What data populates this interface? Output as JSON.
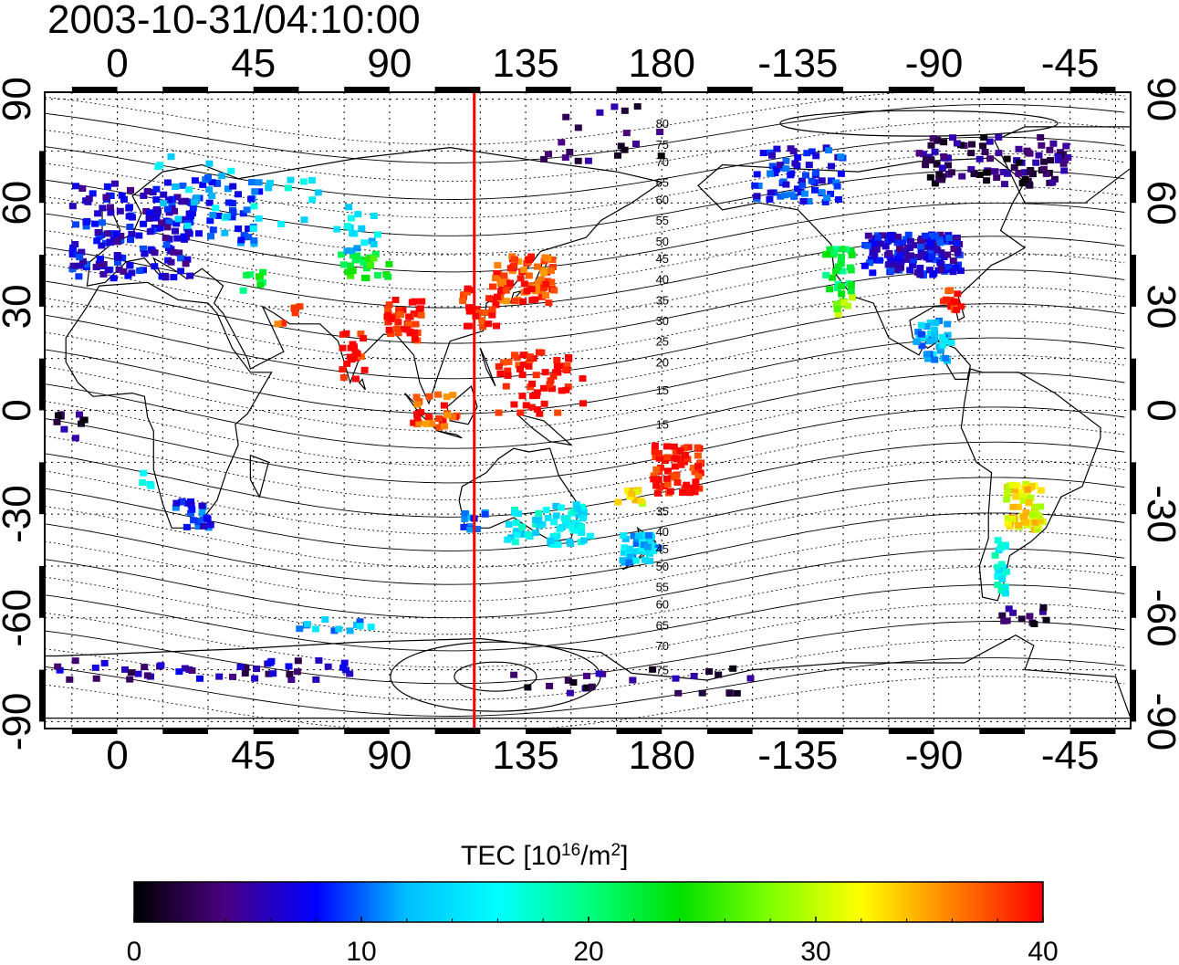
{
  "title": "2003-10-31/04:10:00",
  "map": {
    "lon_ticks": [
      "0",
      "45",
      "90",
      "135",
      "180",
      "-135",
      "-90",
      "-45"
    ],
    "lon_values": [
      0,
      45,
      90,
      135,
      180,
      225,
      270,
      315
    ],
    "lat_ticks": [
      "90",
      "60",
      "30",
      "0",
      "-30",
      "-60",
      "-90"
    ],
    "lat_values": [
      90,
      60,
      30,
      0,
      -30,
      -60,
      -90
    ],
    "lon_range": [
      -24,
      335
    ],
    "lat_range": [
      -92,
      92
    ],
    "meridian_lon": 118,
    "meridian_color": "#ff0000",
    "grid": true,
    "contour_labels": [
      {
        "text": "80",
        "lon": 178,
        "lat": 83
      },
      {
        "text": "75",
        "lon": 178,
        "lat": 77
      },
      {
        "text": "70",
        "lon": 178,
        "lat": 72
      },
      {
        "text": "65",
        "lon": 178,
        "lat": 66
      },
      {
        "text": "60",
        "lon": 178,
        "lat": 61
      },
      {
        "text": "55",
        "lon": 178,
        "lat": 55
      },
      {
        "text": "50",
        "lon": 178,
        "lat": 49
      },
      {
        "text": "45",
        "lon": 178,
        "lat": 44
      },
      {
        "text": "40",
        "lon": 178,
        "lat": 38
      },
      {
        "text": "35",
        "lon": 178,
        "lat": 32
      },
      {
        "text": "30",
        "lon": 178,
        "lat": 26
      },
      {
        "text": "25",
        "lon": 178,
        "lat": 20
      },
      {
        "text": "20",
        "lon": 178,
        "lat": 14
      },
      {
        "text": "15",
        "lon": 178,
        "lat": 6
      },
      {
        "text": "15",
        "lon": 178,
        "lat": -4
      },
      {
        "text": "35",
        "lon": 178,
        "lat": -29
      },
      {
        "text": "40",
        "lon": 178,
        "lat": -35
      },
      {
        "text": "45",
        "lon": 178,
        "lat": -40
      },
      {
        "text": "50",
        "lon": 178,
        "lat": -45
      },
      {
        "text": "55",
        "lon": 178,
        "lat": -51
      },
      {
        "text": "60",
        "lon": 178,
        "lat": -56
      },
      {
        "text": "65",
        "lon": 178,
        "lat": -62
      },
      {
        "text": "70",
        "lon": 178,
        "lat": -68
      },
      {
        "text": "75",
        "lon": 178,
        "lat": -75
      }
    ],
    "tec_clusters": [
      {
        "lon": 5,
        "lat": 52,
        "dlon": 20,
        "dlat": 14,
        "tec": 7,
        "n": 170
      },
      {
        "lon": 35,
        "lat": 58,
        "dlon": 12,
        "dlat": 10,
        "tec": 9,
        "n": 50
      },
      {
        "lon": 45,
        "lat": 38,
        "dlon": 4,
        "dlat": 4,
        "tec": 22,
        "n": 8
      },
      {
        "lon": 57,
        "lat": 28,
        "dlon": 4,
        "dlat": 3,
        "tec": 36,
        "n": 6
      },
      {
        "lon": 82,
        "lat": 42,
        "dlon": 9,
        "dlat": 4,
        "tec": 24,
        "n": 25
      },
      {
        "lon": 82,
        "lat": 52,
        "dlon": 6,
        "dlat": 6,
        "tec": 14,
        "n": 14
      },
      {
        "lon": 95,
        "lat": 26,
        "dlon": 6,
        "dlat": 6,
        "tec": 40,
        "n": 40
      },
      {
        "lon": 78,
        "lat": 16,
        "dlon": 4,
        "dlat": 7,
        "tec": 40,
        "n": 20
      },
      {
        "lon": 135,
        "lat": 38,
        "dlon": 10,
        "dlat": 7,
        "tec": 38,
        "n": 80
      },
      {
        "lon": 120,
        "lat": 30,
        "dlon": 6,
        "dlat": 6,
        "tec": 40,
        "n": 25
      },
      {
        "lon": 140,
        "lat": 8,
        "dlon": 14,
        "dlat": 9,
        "tec": 40,
        "n": 60
      },
      {
        "lon": 105,
        "lat": 0,
        "dlon": 8,
        "dlat": 5,
        "tec": 38,
        "n": 30
      },
      {
        "lon": 185,
        "lat": -17,
        "dlon": 8,
        "dlat": 7,
        "tec": 40,
        "n": 70
      },
      {
        "lon": 170,
        "lat": -25,
        "dlon": 5,
        "dlat": 2,
        "tec": 32,
        "n": 12
      },
      {
        "lon": 143,
        "lat": -33,
        "dlon": 14,
        "dlat": 6,
        "tec": 15,
        "n": 70
      },
      {
        "lon": 173,
        "lat": -40,
        "dlon": 6,
        "dlat": 4,
        "tec": 13,
        "n": 40
      },
      {
        "lon": 118,
        "lat": -32,
        "dlon": 4,
        "dlat": 3,
        "tec": 9,
        "n": 12
      },
      {
        "lon": 25,
        "lat": -30,
        "dlon": 6,
        "dlat": 4,
        "tec": 9,
        "n": 22
      },
      {
        "lon": 10,
        "lat": -20,
        "dlon": 2,
        "dlat": 2,
        "tec": 16,
        "n": 4
      },
      {
        "lon": 263,
        "lat": 45,
        "dlon": 16,
        "dlat": 6,
        "tec": 7,
        "n": 150
      },
      {
        "lon": 238,
        "lat": 40,
        "dlon": 5,
        "dlat": 7,
        "tec": 22,
        "n": 30
      },
      {
        "lon": 276,
        "lat": 32,
        "dlon": 3,
        "dlat": 3,
        "tec": 40,
        "n": 15
      },
      {
        "lon": 270,
        "lat": 20,
        "dlon": 6,
        "dlat": 6,
        "tec": 12,
        "n": 40
      },
      {
        "lon": 300,
        "lat": -28,
        "dlon": 6,
        "dlat": 7,
        "tec": 32,
        "n": 60
      },
      {
        "lon": 293,
        "lat": -45,
        "dlon": 3,
        "dlat": 8,
        "tec": 16,
        "n": 20
      },
      {
        "lon": 300,
        "lat": -60,
        "dlon": 8,
        "dlat": 3,
        "tec": 3,
        "n": 12
      },
      {
        "lon": 290,
        "lat": 72,
        "dlon": 25,
        "dlat": 7,
        "tec": 3,
        "n": 100
      },
      {
        "lon": 225,
        "lat": 68,
        "dlon": 15,
        "dlat": 8,
        "tec": 8,
        "n": 70
      },
      {
        "lon": 45,
        "lat": 62,
        "dlon": 35,
        "dlat": 12,
        "tec": 15,
        "n": 30
      },
      {
        "lon": 160,
        "lat": 80,
        "dlon": 20,
        "dlat": 8,
        "tec": 3,
        "n": 20
      },
      {
        "lon": 30,
        "lat": -75,
        "dlon": 50,
        "dlat": 3,
        "tec": 5,
        "n": 45
      },
      {
        "lon": 170,
        "lat": -78,
        "dlon": 40,
        "dlat": 4,
        "tec": 3,
        "n": 25
      },
      {
        "lon": 72,
        "lat": -62,
        "dlon": 12,
        "dlat": 2,
        "tec": 12,
        "n": 12
      },
      {
        "lon": 240,
        "lat": 30,
        "dlon": 3,
        "dlat": 3,
        "tec": 28,
        "n": 8
      },
      {
        "lon": -15,
        "lat": -5,
        "dlon": 5,
        "dlat": 5,
        "tec": 3,
        "n": 10
      }
    ]
  },
  "colorbar": {
    "label_main": "TEC  [10",
    "label_sup1": "16",
    "label_mid": "/m",
    "label_sup2": "2",
    "label_end": "]",
    "min": 0,
    "max": 40,
    "ticks": [
      "0",
      "10",
      "20",
      "30",
      "40"
    ],
    "tick_values": [
      0,
      10,
      20,
      30,
      40
    ],
    "stops": [
      "#000000",
      "#4b0082",
      "#0000ff",
      "#00bfff",
      "#00ffff",
      "#00ff80",
      "#00e000",
      "#80ff00",
      "#ffff00",
      "#ff8000",
      "#ff0000"
    ]
  }
}
